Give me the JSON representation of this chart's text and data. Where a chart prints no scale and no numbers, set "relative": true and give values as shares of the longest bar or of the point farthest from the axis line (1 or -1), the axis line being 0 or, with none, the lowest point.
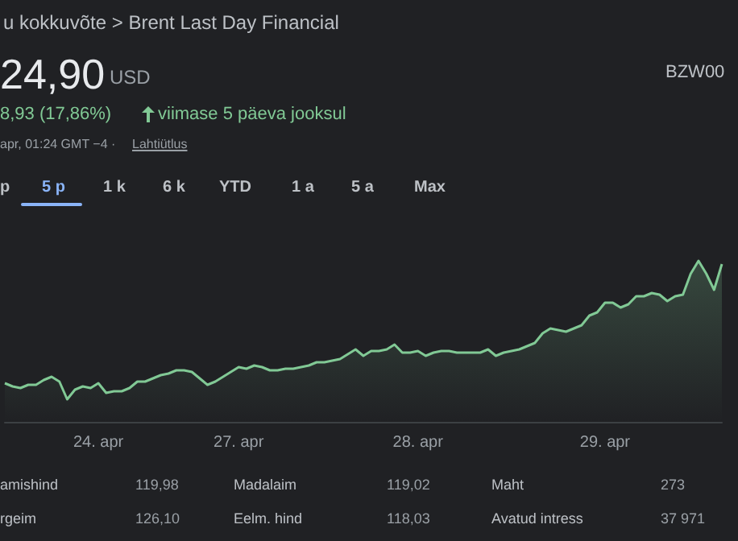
{
  "chart_data": {
    "type": "area",
    "title": "u kokkuvõte > Brent Last Day Financial",
    "relative": true,
    "grid": false,
    "marker": "none",
    "color": "#81c995",
    "categories": [
      null,
      null,
      null,
      null,
      null,
      null,
      null,
      null,
      null,
      null,
      null,
      null,
      "24. apr",
      null,
      null,
      null,
      null,
      null,
      null,
      null,
      null,
      null,
      null,
      null,
      null,
      null,
      null,
      null,
      null,
      null,
      "27. apr",
      null,
      null,
      null,
      null,
      null,
      null,
      null,
      null,
      null,
      null,
      null,
      null,
      null,
      null,
      null,
      null,
      null,
      null,
      null,
      null,
      null,
      null,
      "28. apr",
      null,
      null,
      null,
      null,
      null,
      null,
      null,
      null,
      null,
      null,
      null,
      null,
      null,
      null,
      null,
      null,
      null,
      null,
      null,
      null,
      null,
      null,
      null,
      "29. apr",
      null,
      null,
      null,
      null,
      null,
      null,
      null,
      null,
      null,
      null,
      null,
      null,
      null,
      null,
      null
    ],
    "values": [
      0.24,
      0.22,
      0.21,
      0.23,
      0.23,
      0.26,
      0.28,
      0.25,
      0.14,
      0.2,
      0.22,
      0.21,
      0.24,
      0.18,
      0.19,
      0.19,
      0.21,
      0.25,
      0.25,
      0.27,
      0.29,
      0.3,
      0.32,
      0.32,
      0.31,
      0.27,
      0.23,
      0.25,
      0.28,
      0.31,
      0.34,
      0.33,
      0.35,
      0.34,
      0.32,
      0.32,
      0.33,
      0.33,
      0.34,
      0.35,
      0.37,
      0.37,
      0.38,
      0.39,
      0.42,
      0.45,
      0.41,
      0.44,
      0.44,
      0.45,
      0.48,
      0.43,
      0.43,
      0.44,
      0.41,
      0.43,
      0.44,
      0.44,
      0.43,
      0.43,
      0.43,
      0.43,
      0.45,
      0.41,
      0.43,
      0.44,
      0.45,
      0.47,
      0.49,
      0.55,
      0.58,
      0.57,
      0.56,
      0.58,
      0.6,
      0.66,
      0.68,
      0.74,
      0.74,
      0.71,
      0.73,
      0.78,
      0.78,
      0.8,
      0.79,
      0.75,
      0.78,
      0.79,
      0.92,
      1.0,
      0.92,
      0.82,
      0.98
    ],
    "annotations": [
      "24,90",
      "USD",
      "8,93 (17,86%)",
      "viimase 5 päeva jooksul",
      "apr, 01:24 GMT −4 ·",
      "Lahtiütlus",
      "BZW00",
      "p",
      "5 p",
      "1 k",
      "6 k",
      "YTD",
      "1 a",
      "5 a",
      "Max",
      "amishind",
      "119,98",
      "Madalaim",
      "119,02",
      "Maht",
      "273",
      "rgeim",
      "126,10",
      "Eelm. hind",
      "118,03",
      "Avatud intress",
      "37 971"
    ]
  }
}
